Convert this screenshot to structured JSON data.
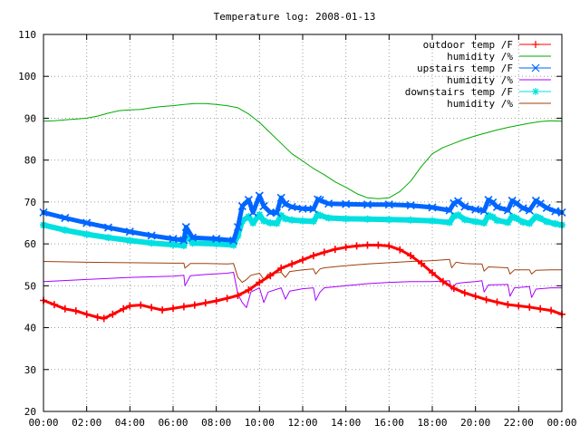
{
  "chart_data": {
    "type": "line",
    "title": "Temperature log: 2008-01-13",
    "xlabel": "",
    "ylabel": "",
    "xlim": [
      0,
      24
    ],
    "ylim": [
      20,
      110
    ],
    "grid": true,
    "legend_position": "top-right",
    "xticks": [
      {
        "v": 0,
        "label": "00:00"
      },
      {
        "v": 2,
        "label": "02:00"
      },
      {
        "v": 4,
        "label": "04:00"
      },
      {
        "v": 6,
        "label": "06:00"
      },
      {
        "v": 8,
        "label": "08:00"
      },
      {
        "v": 10,
        "label": "10:00"
      },
      {
        "v": 12,
        "label": "12:00"
      },
      {
        "v": 14,
        "label": "14:00"
      },
      {
        "v": 16,
        "label": "16:00"
      },
      {
        "v": 18,
        "label": "18:00"
      },
      {
        "v": 20,
        "label": "20:00"
      },
      {
        "v": 22,
        "label": "22:00"
      },
      {
        "v": 24,
        "label": "00:00"
      }
    ],
    "yticks": [
      {
        "v": 20,
        "label": "20"
      },
      {
        "v": 30,
        "label": "30"
      },
      {
        "v": 40,
        "label": "40"
      },
      {
        "v": 50,
        "label": "50"
      },
      {
        "v": 60,
        "label": "60"
      },
      {
        "v": 70,
        "label": "70"
      },
      {
        "v": 80,
        "label": "80"
      },
      {
        "v": 90,
        "label": "90"
      },
      {
        "v": 100,
        "label": "100"
      },
      {
        "v": 110,
        "label": "110"
      }
    ],
    "series": [
      {
        "name": "outdoor temp /F",
        "color": "#ff0000",
        "marker": "plus",
        "width": 3,
        "x": [
          0,
          0.5,
          1,
          1.5,
          2,
          2.5,
          2.8,
          3.2,
          3.7,
          4,
          4.5,
          5,
          5.5,
          6,
          6.5,
          7,
          7.5,
          8,
          8.5,
          9,
          9.5,
          10,
          10.5,
          11,
          11.5,
          12,
          12.5,
          13,
          13.5,
          14,
          14.5,
          15,
          15.5,
          16,
          16.5,
          17,
          17.5,
          18,
          18.5,
          19,
          19.5,
          20,
          20.5,
          21,
          21.5,
          22,
          22.5,
          23,
          23.5,
          24
        ],
        "y": [
          46.5,
          45.5,
          44.5,
          44,
          43.2,
          42.5,
          42.2,
          43.2,
          44.5,
          45.2,
          45.4,
          44.8,
          44.2,
          44.6,
          45,
          45.4,
          45.9,
          46.4,
          47,
          47.7,
          49,
          50.8,
          52.4,
          54.2,
          55.2,
          56.2,
          57.2,
          58,
          58.7,
          59.2,
          59.5,
          59.7,
          59.7,
          59.5,
          58.6,
          57.2,
          55.3,
          53.1,
          51,
          49.4,
          48.3,
          47.5,
          46.7,
          46.1,
          45.5,
          45.2,
          44.9,
          44.5,
          44.1,
          43.2
        ]
      },
      {
        "name": "humidity /%",
        "color": "#00aa00",
        "marker": "none",
        "width": 1,
        "x": [
          0,
          0.5,
          1,
          1.5,
          2,
          2.5,
          3,
          3.5,
          4,
          4.5,
          5,
          5.5,
          6,
          6.5,
          7,
          7.5,
          8,
          8.5,
          9,
          9.5,
          10,
          10.5,
          11,
          11.5,
          12,
          12.5,
          13,
          13.5,
          14,
          14.5,
          15,
          15.5,
          16,
          16.5,
          17,
          17.5,
          18,
          18.5,
          19,
          19.5,
          20,
          20.5,
          21,
          21.5,
          22,
          22.5,
          23,
          23.5,
          24
        ],
        "y": [
          89.3,
          89.4,
          89.6,
          89.8,
          90,
          90.5,
          91.2,
          91.8,
          92,
          92.1,
          92.5,
          92.8,
          93,
          93.3,
          93.5,
          93.5,
          93.3,
          93,
          92.5,
          91,
          89,
          86.5,
          84,
          81.5,
          79.8,
          78,
          76.5,
          74.8,
          73.5,
          72,
          71,
          70.8,
          71,
          72.5,
          75,
          78.5,
          81.5,
          83,
          84,
          85,
          85.8,
          86.5,
          87.2,
          87.8,
          88.3,
          88.8,
          89.2,
          89.4,
          89.3
        ]
      },
      {
        "name": "upstairs temp /F",
        "color": "#0066ff",
        "marker": "cross",
        "width": 5,
        "x": [
          0,
          1,
          2,
          3,
          4,
          5,
          6,
          6.5,
          6.6,
          6.9,
          8,
          8.8,
          9,
          9.2,
          9.5,
          9.7,
          10,
          10.2,
          10.5,
          10.8,
          11,
          11.2,
          11.5,
          12,
          12.5,
          12.7,
          12.8,
          13.2,
          14,
          15,
          16,
          17,
          18,
          18.8,
          19,
          19.2,
          19.5,
          20,
          20.4,
          20.6,
          20.8,
          21,
          21.5,
          21.7,
          21.9,
          22.2,
          22.5,
          22.8,
          23,
          23.3,
          23.7,
          24
        ],
        "y": [
          67.5,
          66.2,
          65,
          63.9,
          62.9,
          62,
          61.2,
          60.9,
          64,
          61.5,
          61.2,
          60.8,
          64,
          69,
          70.5,
          67.5,
          71.5,
          69,
          67.5,
          67.4,
          71,
          69.5,
          68.8,
          68.4,
          68.3,
          70.6,
          70.4,
          69.6,
          69.5,
          69.4,
          69.4,
          69.2,
          68.7,
          68,
          69.7,
          70.2,
          68.9,
          68.2,
          67.9,
          70.5,
          69.9,
          68.8,
          68,
          70.3,
          69.7,
          68.5,
          68,
          70.3,
          69.6,
          68.6,
          67.8,
          67.5
        ]
      },
      {
        "name": "humidity /%",
        "color": "#aa00ff",
        "marker": "none",
        "width": 1,
        "x": [
          0,
          2,
          4,
          6,
          6.5,
          6.55,
          6.8,
          7.5,
          8.5,
          8.8,
          9,
          9.2,
          9.4,
          9.6,
          10,
          10.2,
          10.4,
          11,
          11.2,
          11.4,
          12,
          12.5,
          12.6,
          12.8,
          13,
          14,
          15,
          16,
          17,
          18,
          18.8,
          18.9,
          19.1,
          19.5,
          20,
          20.3,
          20.4,
          20.6,
          21.5,
          21.6,
          21.8,
          22.5,
          22.6,
          22.8,
          23.5,
          24
        ],
        "y": [
          51,
          51.5,
          52,
          52.3,
          52.5,
          50,
          52.4,
          52.7,
          53,
          53.2,
          48,
          46,
          44.8,
          48.5,
          49.5,
          46,
          48.5,
          49.5,
          46.8,
          48.7,
          49.3,
          49.5,
          46.5,
          48.5,
          49.5,
          50,
          50.5,
          50.8,
          51,
          51,
          51.2,
          49,
          50.5,
          50.8,
          51,
          51.2,
          48.5,
          50.2,
          50.3,
          47.5,
          49.5,
          49.8,
          47.2,
          49.2,
          49.5,
          49.5
        ]
      },
      {
        "name": "downstairs temp /F",
        "color": "#00e0e0",
        "marker": "star",
        "width": 6,
        "x": [
          0,
          1,
          2,
          3,
          4,
          5,
          6,
          6.5,
          6.6,
          6.9,
          8,
          8.8,
          9,
          9.2,
          9.5,
          9.7,
          10,
          10.2,
          10.5,
          10.8,
          11,
          11.2,
          11.5,
          12,
          12.5,
          12.7,
          12.8,
          13.2,
          14,
          15,
          16,
          17,
          18,
          18.8,
          19,
          19.2,
          19.5,
          20,
          20.4,
          20.6,
          20.8,
          21,
          21.5,
          21.7,
          21.9,
          22.2,
          22.5,
          22.8,
          23,
          23.3,
          23.7,
          24
        ],
        "y": [
          64.5,
          63.3,
          62.3,
          61.5,
          60.8,
          60.2,
          59.8,
          59.6,
          62.3,
          60.2,
          60,
          59.7,
          62,
          65.5,
          66.5,
          65,
          67,
          65.5,
          65,
          64.9,
          66.8,
          66,
          65.7,
          65.5,
          65.4,
          67,
          66.8,
          66.2,
          66,
          65.9,
          65.8,
          65.7,
          65.5,
          65.1,
          66.6,
          66.9,
          65.8,
          65.3,
          65,
          66.8,
          66.4,
          65.6,
          65.1,
          66.5,
          66.1,
          65.2,
          64.9,
          66.5,
          66.1,
          65.3,
          64.8,
          64.5
        ]
      },
      {
        "name": "humidity /%",
        "color": "#a0400a",
        "marker": "none",
        "width": 1,
        "x": [
          0,
          2,
          4,
          6,
          6.5,
          6.55,
          6.8,
          7.5,
          8.5,
          8.8,
          9,
          9.2,
          9.4,
          9.6,
          10,
          10.2,
          10.4,
          11,
          11.2,
          11.4,
          12,
          12.5,
          12.6,
          12.8,
          13,
          14,
          15,
          16,
          17,
          18,
          18.8,
          18.9,
          19.1,
          19.5,
          20,
          20.3,
          20.4,
          20.6,
          21.5,
          21.6,
          21.8,
          22.5,
          22.6,
          22.8,
          23.5,
          24
        ],
        "y": [
          55.8,
          55.6,
          55.5,
          55.4,
          55.4,
          54.2,
          55.3,
          55.3,
          55.2,
          55.3,
          52,
          50.8,
          51.5,
          52.5,
          53,
          51.5,
          52.8,
          53.2,
          52,
          53.4,
          53.8,
          54,
          52.8,
          54,
          54.3,
          54.8,
          55.2,
          55.5,
          55.8,
          56,
          56.3,
          54.3,
          55.6,
          55.3,
          55.2,
          55.2,
          53.5,
          54.5,
          54.3,
          52.8,
          53.8,
          53.8,
          52.8,
          53.7,
          53.8,
          53.8
        ]
      }
    ]
  }
}
